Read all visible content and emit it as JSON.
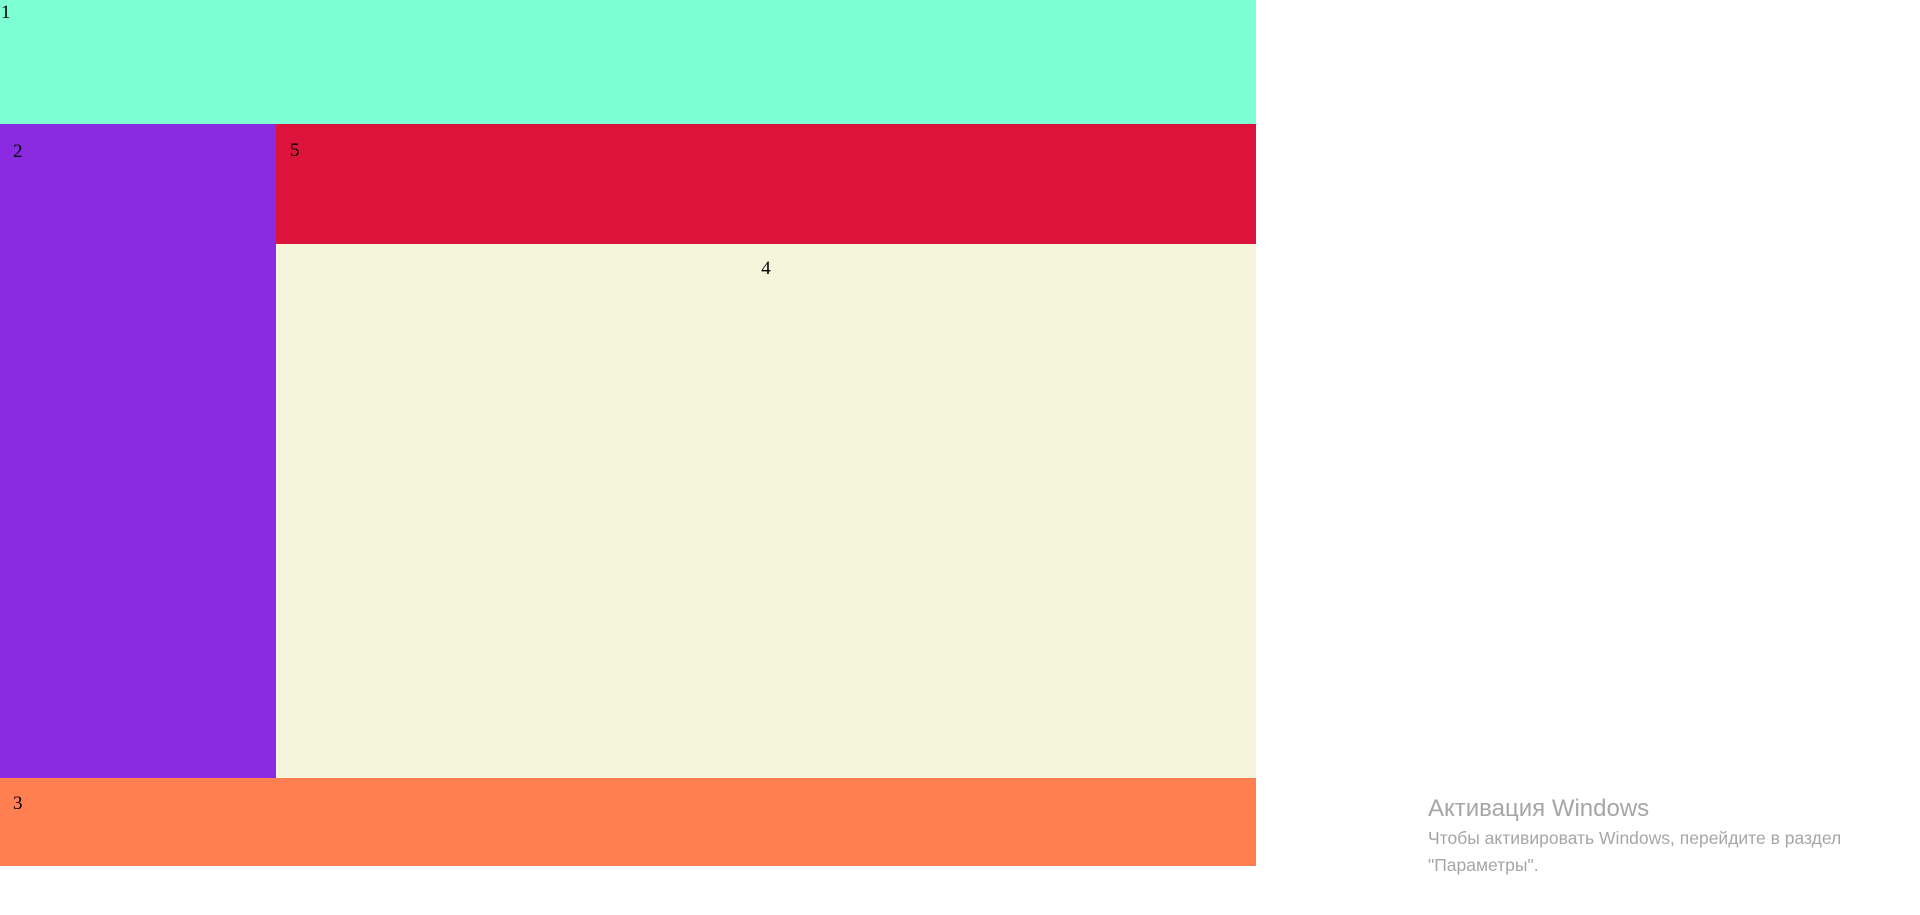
{
  "blocks": {
    "b1": {
      "label": "1",
      "color": "#7fffd4"
    },
    "b2": {
      "label": "2",
      "color": "#8a2be2"
    },
    "b3": {
      "label": "3",
      "color": "#ff7f50"
    },
    "b4": {
      "label": "4",
      "color": "#f5f5dc"
    },
    "b5": {
      "label": "5",
      "color": "#dc143c"
    }
  },
  "watermark": {
    "title": "Активация Windows",
    "line1": "Чтобы активировать Windows, перейдите в раздел",
    "line2": "\"Параметры\"."
  }
}
